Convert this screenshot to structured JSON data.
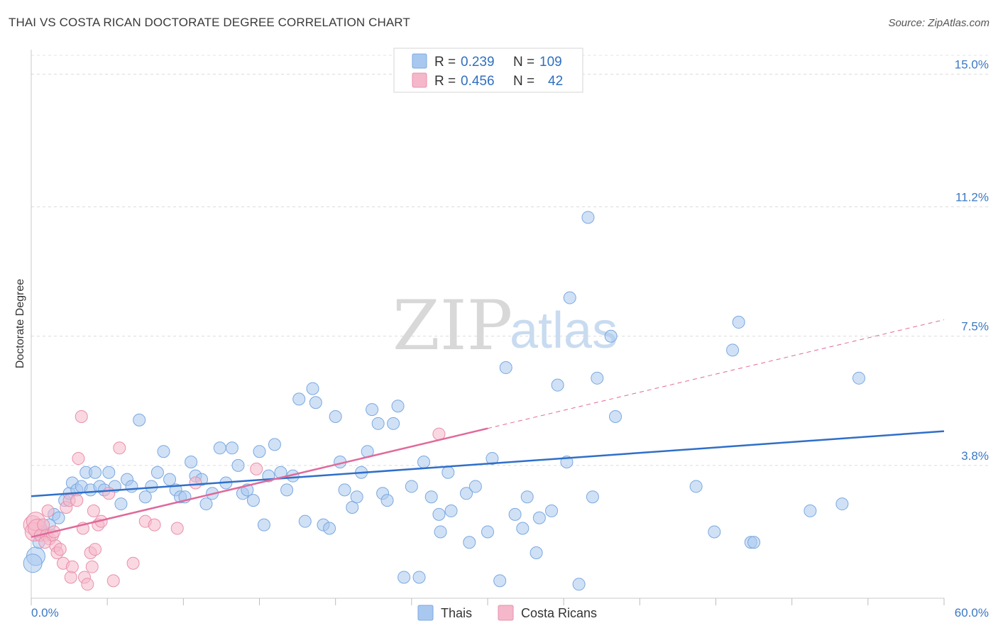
{
  "header": {
    "title": "THAI VS COSTA RICAN DOCTORATE DEGREE CORRELATION CHART",
    "source": "Source: ZipAtlas.com"
  },
  "watermark": {
    "zip": "ZIP",
    "atlas": "atlas"
  },
  "legend": {
    "rows": [
      {
        "r_label": "R =",
        "r_value": "0.239",
        "n_label": "N =",
        "n_value": "109",
        "color": "#a9c8ef"
      },
      {
        "r_label": "R =",
        "r_value": "0.456",
        "n_label": "N =",
        "n_value": "42",
        "color": "#f5b8cb"
      }
    ]
  },
  "bottom_legend": [
    {
      "label": "Thais",
      "color": "#a9c8ef"
    },
    {
      "label": "Costa Ricans",
      "color": "#f5b8cb"
    }
  ],
  "chart_data": {
    "type": "scatter",
    "title": "THAI VS COSTA RICAN DOCTORATE DEGREE CORRELATION CHART",
    "xlabel": "",
    "ylabel": "Doctorate Degree",
    "xlim": [
      0,
      60
    ],
    "ylim": [
      0,
      15.7
    ],
    "x_tick_labels": [
      "0.0%",
      "60.0%"
    ],
    "y_ticks": [
      3.8,
      7.5,
      11.2,
      15.0
    ],
    "y_tick_labels": [
      "3.8%",
      "7.5%",
      "11.2%",
      "15.0%"
    ],
    "grid": true,
    "legend_position": "top-center",
    "series": [
      {
        "name": "Thais",
        "color": "#a9c8ef",
        "stroke": "#7aa8e0",
        "trend": {
          "x": [
            0,
            60
          ],
          "y": [
            2.92,
            4.78
          ],
          "color": "#2f6fc9"
        },
        "points": [
          [
            0.3,
            1.2
          ],
          [
            0.5,
            1.6
          ],
          [
            0.8,
            1.9
          ],
          [
            1.2,
            2.1
          ],
          [
            1.5,
            2.4
          ],
          [
            1.8,
            2.3
          ],
          [
            2.2,
            2.8
          ],
          [
            2.5,
            3.0
          ],
          [
            2.7,
            3.3
          ],
          [
            3.0,
            3.1
          ],
          [
            3.3,
            3.2
          ],
          [
            3.6,
            3.6
          ],
          [
            3.9,
            3.1
          ],
          [
            4.2,
            3.6
          ],
          [
            4.5,
            3.2
          ],
          [
            4.8,
            3.1
          ],
          [
            5.1,
            3.6
          ],
          [
            5.5,
            3.2
          ],
          [
            5.9,
            2.7
          ],
          [
            6.3,
            3.4
          ],
          [
            6.6,
            3.2
          ],
          [
            7.1,
            5.1
          ],
          [
            7.5,
            2.9
          ],
          [
            7.9,
            3.2
          ],
          [
            8.3,
            3.6
          ],
          [
            8.7,
            4.2
          ],
          [
            9.1,
            3.4
          ],
          [
            9.5,
            3.1
          ],
          [
            9.8,
            2.9
          ],
          [
            10.1,
            2.9
          ],
          [
            10.5,
            3.9
          ],
          [
            10.8,
            3.5
          ],
          [
            11.2,
            3.4
          ],
          [
            11.5,
            2.7
          ],
          [
            11.9,
            3.0
          ],
          [
            12.4,
            4.3
          ],
          [
            12.8,
            3.3
          ],
          [
            13.2,
            4.3
          ],
          [
            13.6,
            3.8
          ],
          [
            13.9,
            3.0
          ],
          [
            14.2,
            3.1
          ],
          [
            14.6,
            2.8
          ],
          [
            15.0,
            4.2
          ],
          [
            15.3,
            2.1
          ],
          [
            15.6,
            3.5
          ],
          [
            16.0,
            4.4
          ],
          [
            16.4,
            3.6
          ],
          [
            16.8,
            3.1
          ],
          [
            17.2,
            3.5
          ],
          [
            17.6,
            5.7
          ],
          [
            18.0,
            2.2
          ],
          [
            18.5,
            6.0
          ],
          [
            18.7,
            5.6
          ],
          [
            19.2,
            2.1
          ],
          [
            19.6,
            2.0
          ],
          [
            20.0,
            5.2
          ],
          [
            20.3,
            3.9
          ],
          [
            20.6,
            3.1
          ],
          [
            21.1,
            2.6
          ],
          [
            21.4,
            2.9
          ],
          [
            21.7,
            3.6
          ],
          [
            22.1,
            4.2
          ],
          [
            22.4,
            5.4
          ],
          [
            22.8,
            5.0
          ],
          [
            23.1,
            3.0
          ],
          [
            23.4,
            2.8
          ],
          [
            23.8,
            5.0
          ],
          [
            24.1,
            5.5
          ],
          [
            24.5,
            0.6
          ],
          [
            25.0,
            3.2
          ],
          [
            25.5,
            0.6
          ],
          [
            25.8,
            3.9
          ],
          [
            26.3,
            2.9
          ],
          [
            26.8,
            2.4
          ],
          [
            26.9,
            1.9
          ],
          [
            27.4,
            3.6
          ],
          [
            27.6,
            2.5
          ],
          [
            28.6,
            3.0
          ],
          [
            28.8,
            1.6
          ],
          [
            29.2,
            3.2
          ],
          [
            30.0,
            1.9
          ],
          [
            30.3,
            4.0
          ],
          [
            30.8,
            0.5
          ],
          [
            31.2,
            6.6
          ],
          [
            31.8,
            2.4
          ],
          [
            32.3,
            2.0
          ],
          [
            32.6,
            2.9
          ],
          [
            33.2,
            1.3
          ],
          [
            33.4,
            2.3
          ],
          [
            34.2,
            2.5
          ],
          [
            34.6,
            6.1
          ],
          [
            35.2,
            3.9
          ],
          [
            35.4,
            8.6
          ],
          [
            36.0,
            0.4
          ],
          [
            36.6,
            10.9
          ],
          [
            36.9,
            2.9
          ],
          [
            37.2,
            6.3
          ],
          [
            38.1,
            7.5
          ],
          [
            38.4,
            5.2
          ],
          [
            43.7,
            3.2
          ],
          [
            44.9,
            1.9
          ],
          [
            46.1,
            7.1
          ],
          [
            46.5,
            7.9
          ],
          [
            47.3,
            1.6
          ],
          [
            47.5,
            1.6
          ],
          [
            51.2,
            2.5
          ],
          [
            53.3,
            2.7
          ],
          [
            54.4,
            6.3
          ],
          [
            0.1,
            1.0
          ]
        ]
      },
      {
        "name": "Costa Ricans",
        "color": "#f5b8cb",
        "stroke": "#e890ab",
        "trend": {
          "x": [
            0,
            30
          ],
          "y": [
            1.75,
            4.86
          ],
          "color": "#e0699a"
        },
        "trend_extension": {
          "x": [
            30,
            60
          ],
          "y": [
            4.86,
            7.97
          ]
        },
        "points": [
          [
            0.1,
            2.1
          ],
          [
            0.2,
            1.9
          ],
          [
            0.3,
            2.2
          ],
          [
            0.4,
            2.0
          ],
          [
            0.6,
            1.8
          ],
          [
            0.8,
            2.1
          ],
          [
            1.0,
            1.8
          ],
          [
            1.1,
            2.5
          ],
          [
            1.2,
            1.7
          ],
          [
            1.4,
            1.8
          ],
          [
            1.6,
            1.5
          ],
          [
            1.7,
            1.3
          ],
          [
            1.9,
            1.4
          ],
          [
            2.1,
            1.0
          ],
          [
            2.3,
            2.6
          ],
          [
            2.5,
            2.8
          ],
          [
            2.6,
            0.6
          ],
          [
            2.7,
            0.9
          ],
          [
            3.0,
            2.8
          ],
          [
            3.1,
            4.0
          ],
          [
            3.3,
            5.2
          ],
          [
            3.4,
            2.0
          ],
          [
            3.5,
            0.6
          ],
          [
            3.7,
            0.4
          ],
          [
            3.9,
            1.3
          ],
          [
            4.0,
            0.9
          ],
          [
            4.1,
            2.5
          ],
          [
            4.2,
            1.4
          ],
          [
            4.4,
            2.1
          ],
          [
            4.6,
            2.2
          ],
          [
            5.1,
            3.0
          ],
          [
            5.4,
            0.5
          ],
          [
            5.8,
            4.3
          ],
          [
            6.7,
            1.0
          ],
          [
            7.5,
            2.2
          ],
          [
            8.1,
            2.1
          ],
          [
            9.6,
            2.0
          ],
          [
            10.8,
            3.3
          ],
          [
            14.8,
            3.7
          ],
          [
            26.8,
            4.7
          ],
          [
            1.5,
            1.9
          ],
          [
            0.9,
            1.6
          ]
        ]
      }
    ]
  }
}
